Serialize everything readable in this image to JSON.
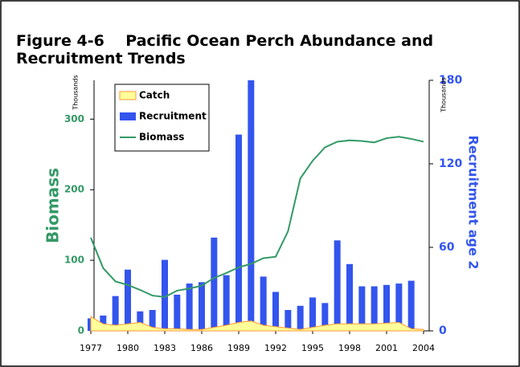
{
  "chart_data": {
    "type": "bar-line",
    "title": "Figure 4-6    Pacific Ocean Perch Abundance and Recruitment Trends",
    "y_label": "Biomass",
    "y_unit": "Thousands",
    "y2_label": "Recruitment age 2",
    "y2_unit": "Thousands",
    "categories": [
      "1977",
      null,
      null,
      "1980",
      null,
      null,
      "1983",
      null,
      null,
      "1986",
      null,
      null,
      "1989",
      null,
      null,
      "1992",
      null,
      null,
      "1995",
      null,
      null,
      "1998",
      null,
      null,
      "2001",
      null,
      null,
      "2004"
    ],
    "series": [
      {
        "name": "Catch",
        "type": "area",
        "color": "#ffff99",
        "edge": "#ff9933",
        "axis": "y",
        "values": [
          20,
          10,
          8,
          10,
          12,
          5,
          3,
          3,
          2,
          2,
          5,
          8,
          12,
          14,
          8,
          6,
          4,
          2,
          5,
          8,
          10,
          10,
          10,
          10,
          11,
          12,
          3,
          2
        ]
      },
      {
        "name": "Recruitment",
        "type": "bar",
        "color": "#3355ee",
        "axis": "y2",
        "values": [
          9,
          11,
          25,
          44,
          14,
          15,
          51,
          26,
          34,
          35,
          67,
          40,
          141,
          180,
          39,
          28,
          15,
          18,
          24,
          20,
          65,
          48,
          32,
          32,
          33,
          34,
          36,
          null
        ]
      },
      {
        "name": "Biomass",
        "type": "line",
        "color": "#339966",
        "axis": "y",
        "values": [
          132,
          89,
          70,
          65,
          58,
          50,
          48,
          57,
          60,
          64,
          75,
          82,
          90,
          95,
          103,
          105,
          141,
          216,
          241,
          260,
          268,
          270,
          269,
          267,
          273,
          275,
          272,
          268
        ]
      }
    ],
    "ylim": [
      0,
      355
    ],
    "yticks": [
      0,
      100,
      200,
      300
    ],
    "y_color": "#339966",
    "y2lim": [
      0,
      180
    ],
    "y2ticks": [
      0,
      60,
      120,
      180
    ],
    "y2_color": "#3355ee",
    "legend": "top-left"
  }
}
